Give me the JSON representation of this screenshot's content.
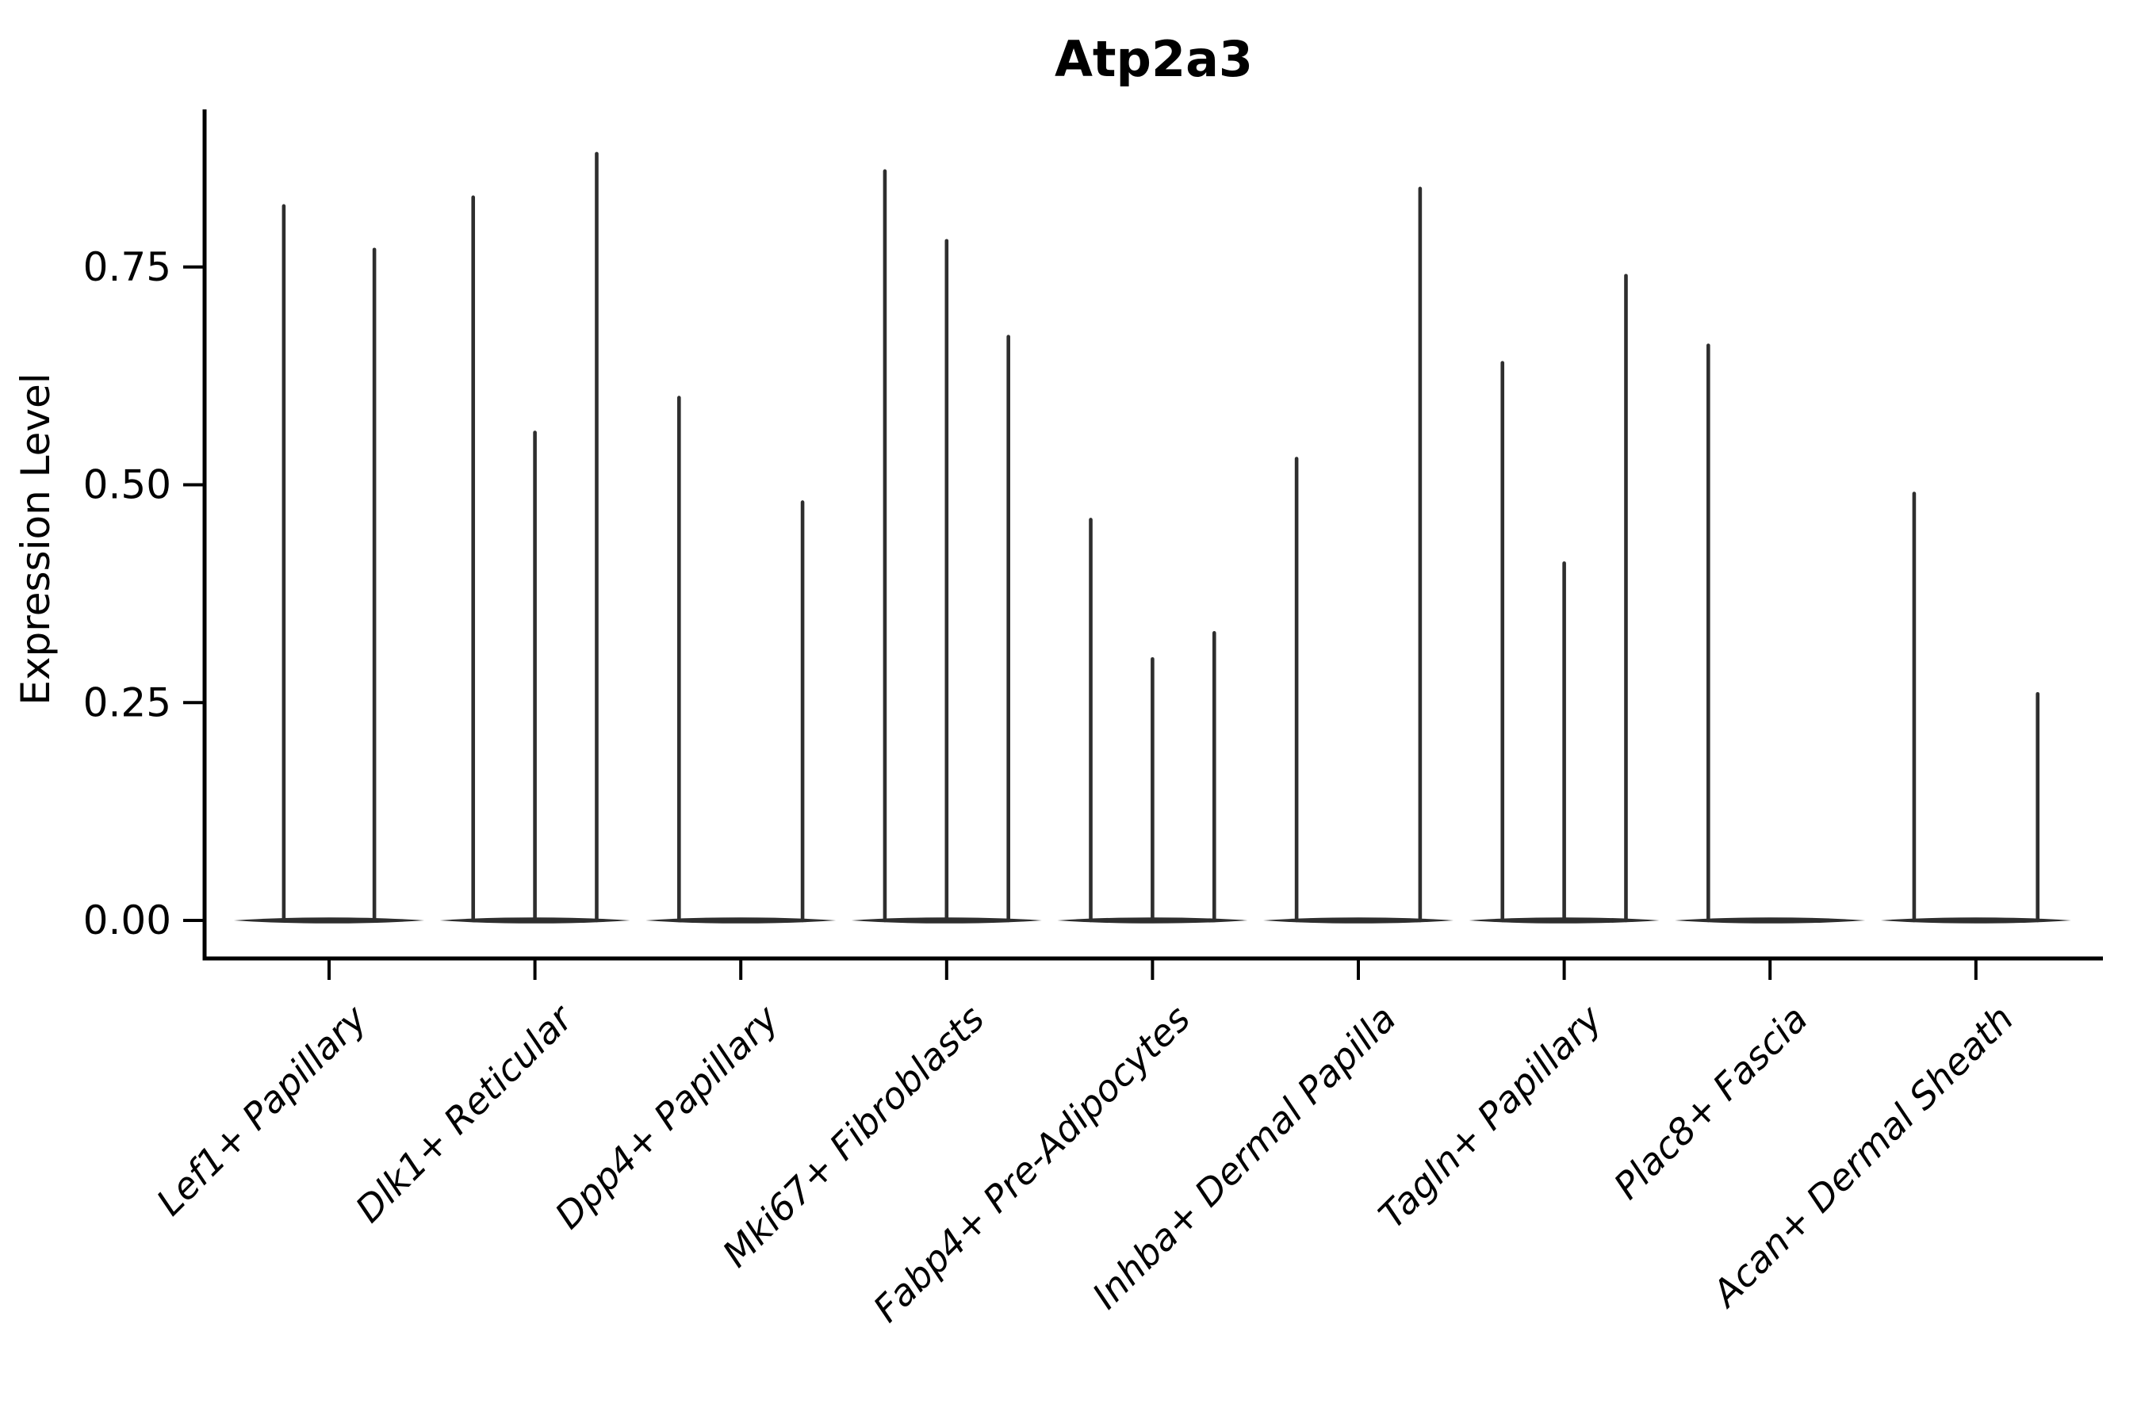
{
  "figure": {
    "title": "Atp2a3"
  },
  "chart_data": {
    "type": "violin",
    "title": "Atp2a3",
    "subtitle": "",
    "xlabel": "",
    "ylabel": "Expression Level",
    "ytick_labels": [
      "0.00",
      "0.25",
      "0.50",
      "0.75"
    ],
    "ytick_values": [
      0.0,
      0.25,
      0.5,
      0.75
    ],
    "ylim": [
      0.0,
      0.93
    ],
    "grid": false,
    "legend_position": "none",
    "x_tick_label_rotation_deg": 45,
    "x_tick_label_style": "italic",
    "violin_style": "thin-spike (most mass at 0, line to max expression)",
    "categories": [
      "Lef1+ Papillary",
      "Dlk1+ Reticular",
      "Dpp4+ Papillary",
      "Mki67+ Fibroblasts",
      "Fabp4+ Pre-Adipocytes",
      "Inhba+ Dermal Papilla",
      "Tagln+ Papillary",
      "Plac8+ Fascia",
      "Acan+ Dermal Sheath"
    ],
    "groups": [
      {
        "category": "Lef1+ Papillary",
        "violins": [
          {
            "offset": -0.22,
            "max": 0.82
          },
          {
            "offset": 0.22,
            "max": 0.77
          }
        ]
      },
      {
        "category": "Dlk1+ Reticular",
        "violins": [
          {
            "offset": -0.3,
            "max": 0.83
          },
          {
            "offset": 0.0,
            "max": 0.56
          },
          {
            "offset": 0.3,
            "max": 0.88
          }
        ]
      },
      {
        "category": "Dpp4+ Papillary",
        "violins": [
          {
            "offset": -0.3,
            "max": 0.6
          },
          {
            "offset": 0.3,
            "max": 0.48
          }
        ]
      },
      {
        "category": "Mki67+ Fibroblasts",
        "violins": [
          {
            "offset": -0.3,
            "max": 0.86
          },
          {
            "offset": 0.0,
            "max": 0.78
          },
          {
            "offset": 0.3,
            "max": 0.67
          }
        ]
      },
      {
        "category": "Fabp4+ Pre-Adipocytes",
        "violins": [
          {
            "offset": -0.3,
            "max": 0.46
          },
          {
            "offset": 0.0,
            "max": 0.3
          },
          {
            "offset": 0.3,
            "max": 0.33
          }
        ]
      },
      {
        "category": "Inhba+ Dermal Papilla",
        "violins": [
          {
            "offset": -0.3,
            "max": 0.53
          },
          {
            "offset": 0.3,
            "max": 0.84
          }
        ]
      },
      {
        "category": "Tagln+ Papillary",
        "violins": [
          {
            "offset": -0.3,
            "max": 0.64
          },
          {
            "offset": 0.0,
            "max": 0.41
          },
          {
            "offset": 0.3,
            "max": 0.74
          }
        ]
      },
      {
        "category": "Plac8+ Fascia",
        "violins": [
          {
            "offset": -0.3,
            "max": 0.66
          }
        ]
      },
      {
        "category": "Acan+ Dermal Sheath",
        "violins": [
          {
            "offset": -0.3,
            "max": 0.49
          },
          {
            "offset": 0.3,
            "max": 0.26
          }
        ]
      }
    ],
    "violin_base_value": 0.0,
    "colors": {
      "violin": "#2e2e2e",
      "axis": "#000000",
      "text": "#000000",
      "background": "#ffffff"
    }
  }
}
